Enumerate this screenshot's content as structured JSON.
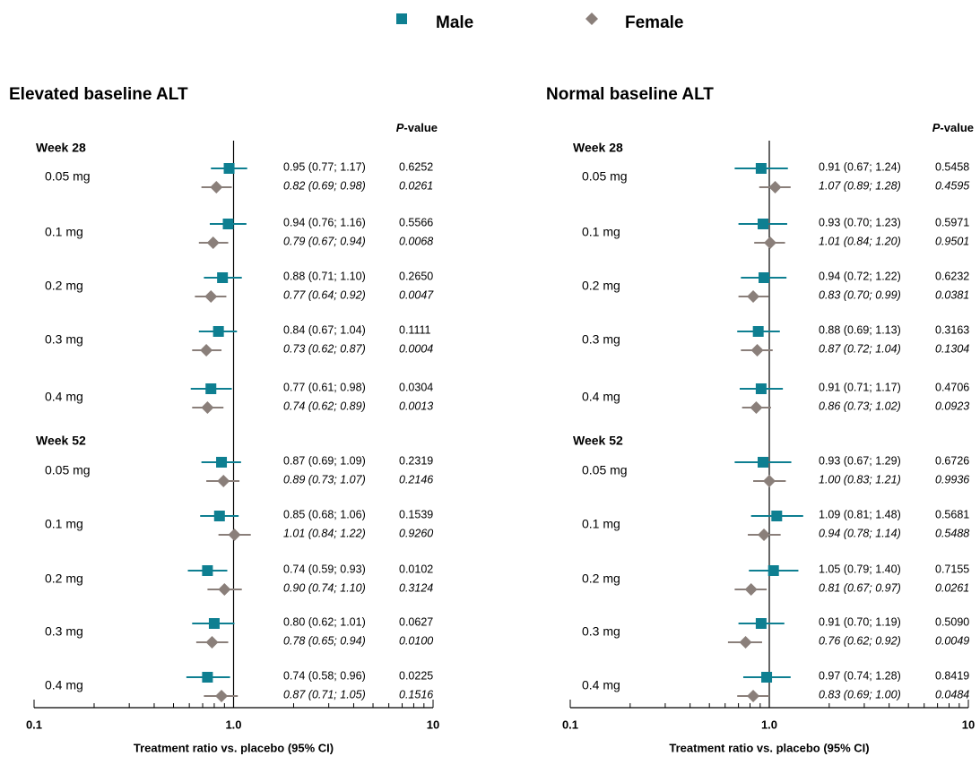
{
  "legend": [
    {
      "name": "Male",
      "marker": "square",
      "color": "#0e7f91"
    },
    {
      "name": "Female",
      "marker": "diamond",
      "color": "#8a7f7a"
    }
  ],
  "chart_data": [
    {
      "type": "forest",
      "title": "Elevated baseline ALT",
      "xlabel": "Treatment ratio vs. placebo (95% CI)",
      "x_scale": "log",
      "xlim": [
        0.1,
        10
      ],
      "x_ticks": [
        "0.1",
        "1.0",
        "10"
      ],
      "reference_line": 1.0,
      "pvalue_header": {
        "italic": "P",
        "rest": "-value"
      },
      "groups": [
        {
          "label": "Week 28",
          "rows": [
            {
              "dose": "0.05 mg",
              "male": {
                "est": 0.95,
                "lo": 0.77,
                "hi": 1.17,
                "text": "0.95 (0.77; 1.17)",
                "p": "0.6252"
              },
              "female": {
                "est": 0.82,
                "lo": 0.69,
                "hi": 0.98,
                "text": "0.82 (0.69; 0.98)",
                "p": "0.0261"
              }
            },
            {
              "dose": "0.1 mg",
              "male": {
                "est": 0.94,
                "lo": 0.76,
                "hi": 1.16,
                "text": "0.94 (0.76; 1.16)",
                "p": "0.5566"
              },
              "female": {
                "est": 0.79,
                "lo": 0.67,
                "hi": 0.94,
                "text": "0.79 (0.67; 0.94)",
                "p": "0.0068"
              }
            },
            {
              "dose": "0.2 mg",
              "male": {
                "est": 0.88,
                "lo": 0.71,
                "hi": 1.1,
                "text": "0.88 (0.71; 1.10)",
                "p": "0.2650"
              },
              "female": {
                "est": 0.77,
                "lo": 0.64,
                "hi": 0.92,
                "text": "0.77 (0.64; 0.92)",
                "p": "0.0047"
              }
            },
            {
              "dose": "0.3 mg",
              "male": {
                "est": 0.84,
                "lo": 0.67,
                "hi": 1.04,
                "text": "0.84 (0.67; 1.04)",
                "p": "0.1111"
              },
              "female": {
                "est": 0.73,
                "lo": 0.62,
                "hi": 0.87,
                "text": "0.73 (0.62; 0.87)",
                "p": "0.0004"
              }
            },
            {
              "dose": "0.4 mg",
              "male": {
                "est": 0.77,
                "lo": 0.61,
                "hi": 0.98,
                "text": "0.77 (0.61; 0.98)",
                "p": "0.0304"
              },
              "female": {
                "est": 0.74,
                "lo": 0.62,
                "hi": 0.89,
                "text": "0.74 (0.62; 0.89)",
                "p": "0.0013"
              }
            }
          ]
        },
        {
          "label": "Week 52",
          "rows": [
            {
              "dose": "0.05 mg",
              "male": {
                "est": 0.87,
                "lo": 0.69,
                "hi": 1.09,
                "text": "0.87 (0.69; 1.09)",
                "p": "0.2319"
              },
              "female": {
                "est": 0.89,
                "lo": 0.73,
                "hi": 1.07,
                "text": "0.89 (0.73; 1.07)",
                "p": "0.2146"
              }
            },
            {
              "dose": "0.1 mg",
              "male": {
                "est": 0.85,
                "lo": 0.68,
                "hi": 1.06,
                "text": "0.85 (0.68; 1.06)",
                "p": "0.1539"
              },
              "female": {
                "est": 1.01,
                "lo": 0.84,
                "hi": 1.22,
                "text": "1.01 (0.84; 1.22)",
                "p": "0.9260"
              }
            },
            {
              "dose": "0.2 mg",
              "male": {
                "est": 0.74,
                "lo": 0.59,
                "hi": 0.93,
                "text": "0.74 (0.59; 0.93)",
                "p": "0.0102"
              },
              "female": {
                "est": 0.9,
                "lo": 0.74,
                "hi": 1.1,
                "text": "0.90 (0.74; 1.10)",
                "p": "0.3124"
              }
            },
            {
              "dose": "0.3 mg",
              "male": {
                "est": 0.8,
                "lo": 0.62,
                "hi": 1.01,
                "text": "0.80 (0.62; 1.01)",
                "p": "0.0627"
              },
              "female": {
                "est": 0.78,
                "lo": 0.65,
                "hi": 0.94,
                "text": "0.78 (0.65; 0.94)",
                "p": "0.0100"
              }
            },
            {
              "dose": "0.4 mg",
              "male": {
                "est": 0.74,
                "lo": 0.58,
                "hi": 0.96,
                "text": "0.74 (0.58; 0.96)",
                "p": "0.0225"
              },
              "female": {
                "est": 0.87,
                "lo": 0.71,
                "hi": 1.05,
                "text": "0.87 (0.71; 1.05)",
                "p": "0.1516"
              }
            }
          ]
        }
      ]
    },
    {
      "type": "forest",
      "title": "Normal baseline ALT",
      "xlabel": "Treatment ratio vs. placebo (95% CI)",
      "x_scale": "log",
      "xlim": [
        0.1,
        10
      ],
      "x_ticks": [
        "0.1",
        "1.0",
        "10"
      ],
      "reference_line": 1.0,
      "pvalue_header": {
        "italic": "P",
        "rest": "-value"
      },
      "groups": [
        {
          "label": "Week 28",
          "rows": [
            {
              "dose": "0.05 mg",
              "male": {
                "est": 0.91,
                "lo": 0.67,
                "hi": 1.24,
                "text": "0.91 (0.67; 1.24)",
                "p": "0.5458"
              },
              "female": {
                "est": 1.07,
                "lo": 0.89,
                "hi": 1.28,
                "text": "1.07 (0.89; 1.28)",
                "p": "0.4595"
              }
            },
            {
              "dose": "0.1 mg",
              "male": {
                "est": 0.93,
                "lo": 0.7,
                "hi": 1.23,
                "text": "0.93 (0.70; 1.23)",
                "p": "0.5971"
              },
              "female": {
                "est": 1.01,
                "lo": 0.84,
                "hi": 1.2,
                "text": "1.01 (0.84; 1.20)",
                "p": "0.9501"
              }
            },
            {
              "dose": "0.2 mg",
              "male": {
                "est": 0.94,
                "lo": 0.72,
                "hi": 1.22,
                "text": "0.94 (0.72; 1.22)",
                "p": "0.6232"
              },
              "female": {
                "est": 0.83,
                "lo": 0.7,
                "hi": 0.99,
                "text": "0.83 (0.70; 0.99)",
                "p": "0.0381"
              }
            },
            {
              "dose": "0.3 mg",
              "male": {
                "est": 0.88,
                "lo": 0.69,
                "hi": 1.13,
                "text": "0.88 (0.69; 1.13)",
                "p": "0.3163"
              },
              "female": {
                "est": 0.87,
                "lo": 0.72,
                "hi": 1.04,
                "text": "0.87 (0.72; 1.04)",
                "p": "0.1304"
              }
            },
            {
              "dose": "0.4 mg",
              "male": {
                "est": 0.91,
                "lo": 0.71,
                "hi": 1.17,
                "text": "0.91 (0.71; 1.17)",
                "p": "0.4706"
              },
              "female": {
                "est": 0.86,
                "lo": 0.73,
                "hi": 1.02,
                "text": "0.86 (0.73; 1.02)",
                "p": "0.0923"
              }
            }
          ]
        },
        {
          "label": "Week 52",
          "rows": [
            {
              "dose": "0.05 mg",
              "male": {
                "est": 0.93,
                "lo": 0.67,
                "hi": 1.29,
                "text": "0.93 (0.67; 1.29)",
                "p": "0.6726"
              },
              "female": {
                "est": 1.0,
                "lo": 0.83,
                "hi": 1.21,
                "text": "1.00 (0.83; 1.21)",
                "p": "0.9936"
              }
            },
            {
              "dose": "0.1 mg",
              "male": {
                "est": 1.09,
                "lo": 0.81,
                "hi": 1.48,
                "text": "1.09 (0.81; 1.48)",
                "p": "0.5681"
              },
              "female": {
                "est": 0.94,
                "lo": 0.78,
                "hi": 1.14,
                "text": "0.94 (0.78; 1.14)",
                "p": "0.5488"
              }
            },
            {
              "dose": "0.2 mg",
              "male": {
                "est": 1.05,
                "lo": 0.79,
                "hi": 1.4,
                "text": "1.05 (0.79; 1.40)",
                "p": "0.7155"
              },
              "female": {
                "est": 0.81,
                "lo": 0.67,
                "hi": 0.97,
                "text": "0.81 (0.67; 0.97)",
                "p": "0.0261"
              }
            },
            {
              "dose": "0.3 mg",
              "male": {
                "est": 0.91,
                "lo": 0.7,
                "hi": 1.19,
                "text": "0.91 (0.70; 1.19)",
                "p": "0.5090"
              },
              "female": {
                "est": 0.76,
                "lo": 0.62,
                "hi": 0.92,
                "text": "0.76 (0.62; 0.92)",
                "p": "0.0049"
              }
            },
            {
              "dose": "0.4 mg",
              "male": {
                "est": 0.97,
                "lo": 0.74,
                "hi": 1.28,
                "text": "0.97 (0.74; 1.28)",
                "p": "0.8419"
              },
              "female": {
                "est": 0.83,
                "lo": 0.69,
                "hi": 1.0,
                "text": "0.83 (0.69; 1.00)",
                "p": "0.0484"
              }
            }
          ]
        }
      ]
    }
  ]
}
